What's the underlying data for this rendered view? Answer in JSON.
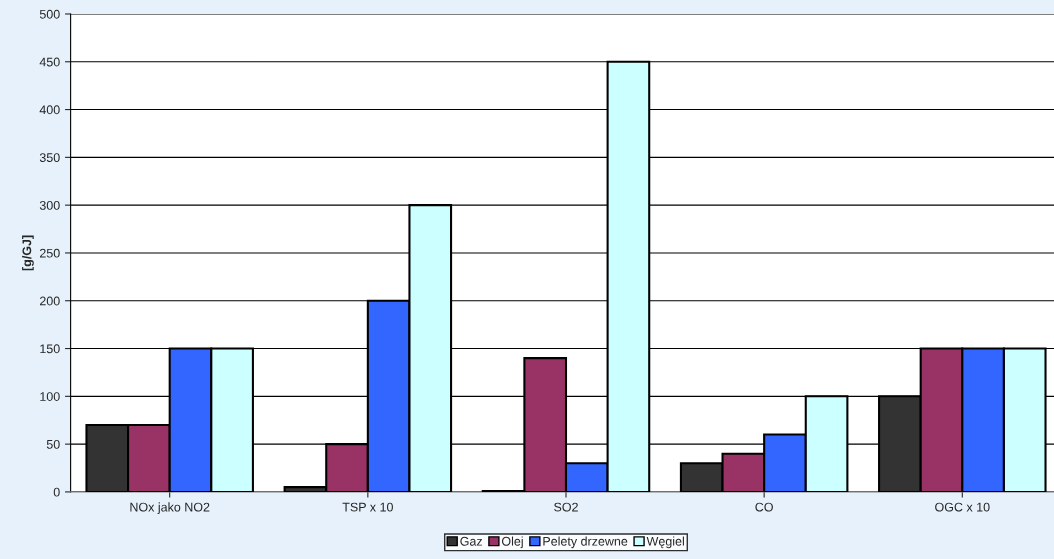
{
  "chart_data": {
    "type": "bar",
    "ylabel": "[g/GJ]",
    "categories": [
      "NOx jako NO2",
      "TSP x 10",
      "SO2",
      "CO",
      "OGC x 10"
    ],
    "series": [
      {
        "name": "Gaz",
        "color": "#333333",
        "values": [
          70,
          5,
          1,
          30,
          100
        ]
      },
      {
        "name": "Olej",
        "color": "#993366",
        "values": [
          70,
          50,
          140,
          40,
          150
        ]
      },
      {
        "name": "Pelety drzewne",
        "color": "#3366ff",
        "values": [
          150,
          200,
          30,
          60,
          150
        ]
      },
      {
        "name": "Węgiel",
        "color": "#ccffff",
        "values": [
          150,
          300,
          450,
          100,
          150
        ]
      }
    ],
    "ylim": [
      0,
      500
    ],
    "yticks": [
      0,
      50,
      100,
      150,
      200,
      250,
      300,
      350,
      400,
      450,
      500
    ],
    "grid": "y",
    "legend": "bottom"
  }
}
